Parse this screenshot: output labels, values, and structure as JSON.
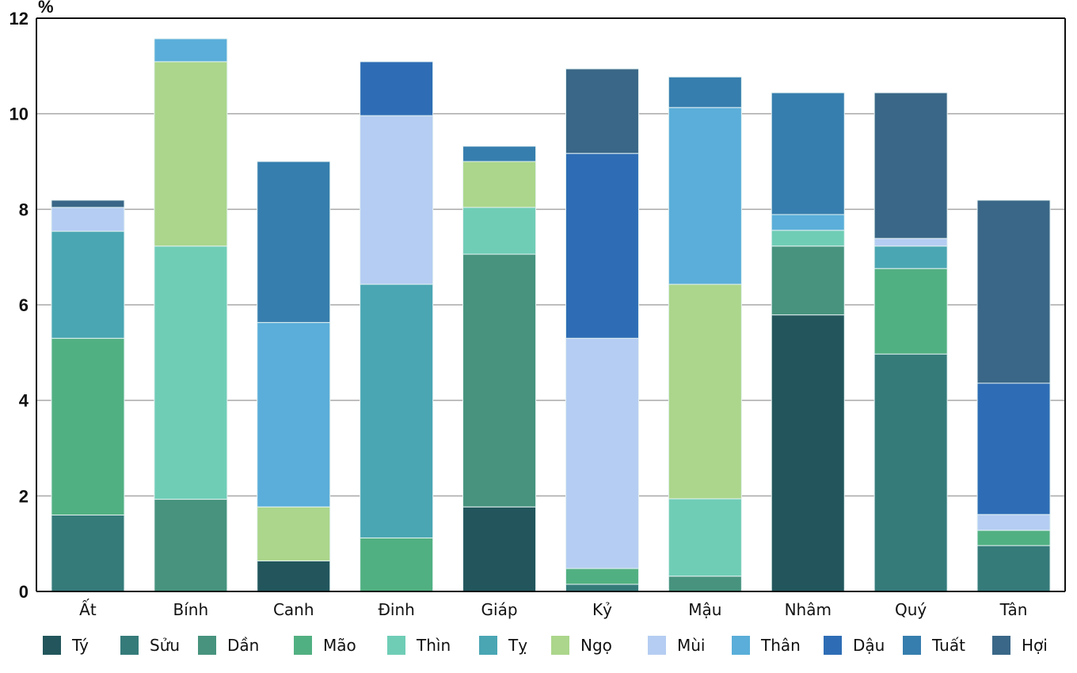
{
  "chart_data": {
    "type": "bar",
    "stacked": true,
    "title": "",
    "xlabel": "",
    "ylabel": "%",
    "ylim": [
      0,
      12
    ],
    "yticks": [
      0,
      2,
      4,
      6,
      8,
      10,
      12
    ],
    "grid": true,
    "legend_position": "bottom",
    "categories": [
      "Ất",
      "Bính",
      "Canh",
      "Đinh",
      "Giáp",
      "Kỷ",
      "Mậu",
      "Nhâm",
      "Quý",
      "Tân"
    ],
    "series": [
      {
        "name": "Tý",
        "color": "#22565c",
        "values": [
          0,
          0,
          0.64,
          0,
          1.77,
          0,
          0,
          5.79,
          0,
          0
        ]
      },
      {
        "name": "Sửu",
        "color": "#357b7a",
        "values": [
          1.6,
          0,
          0,
          0,
          0,
          0.15,
          0,
          0,
          4.97,
          0.96
        ]
      },
      {
        "name": "Dần",
        "color": "#47937e",
        "values": [
          0,
          1.93,
          0,
          0,
          5.29,
          0,
          0.32,
          1.44,
          0,
          0
        ]
      },
      {
        "name": "Mão",
        "color": "#51b081",
        "values": [
          3.7,
          0,
          0,
          1.12,
          0,
          0.33,
          0,
          0,
          1.79,
          0.32
        ]
      },
      {
        "name": "Thìn",
        "color": "#6fcdb6",
        "values": [
          0,
          5.3,
          0,
          0,
          0.98,
          0,
          1.62,
          0.33,
          0,
          0
        ]
      },
      {
        "name": "Tỵ",
        "color": "#4aa6b3",
        "values": [
          2.24,
          0,
          0,
          5.31,
          0,
          0,
          0,
          0,
          0.47,
          0
        ]
      },
      {
        "name": "Ngọ",
        "color": "#abd68b",
        "values": [
          0,
          3.86,
          1.13,
          0,
          0.96,
          0,
          4.49,
          0,
          0,
          0
        ]
      },
      {
        "name": "Mùi",
        "color": "#b5cdf2",
        "values": [
          0.5,
          0,
          0,
          3.53,
          0,
          4.82,
          0,
          0,
          0.16,
          0.33
        ]
      },
      {
        "name": "Thân",
        "color": "#5aaed9",
        "values": [
          0,
          0.48,
          3.86,
          0,
          0,
          0,
          3.7,
          0.33,
          0,
          0
        ]
      },
      {
        "name": "Dậu",
        "color": "#2e6db5",
        "values": [
          0,
          0,
          0,
          1.13,
          0,
          3.87,
          0,
          0,
          0,
          2.75
        ]
      },
      {
        "name": "Tuất",
        "color": "#367eae",
        "values": [
          0,
          0,
          3.37,
          0,
          0.32,
          0,
          0.64,
          2.55,
          0,
          0
        ]
      },
      {
        "name": "Hợi",
        "color": "#3a6787",
        "values": [
          0.15,
          0,
          0,
          0,
          0,
          1.77,
          0,
          0,
          3.05,
          3.83
        ]
      }
    ]
  }
}
